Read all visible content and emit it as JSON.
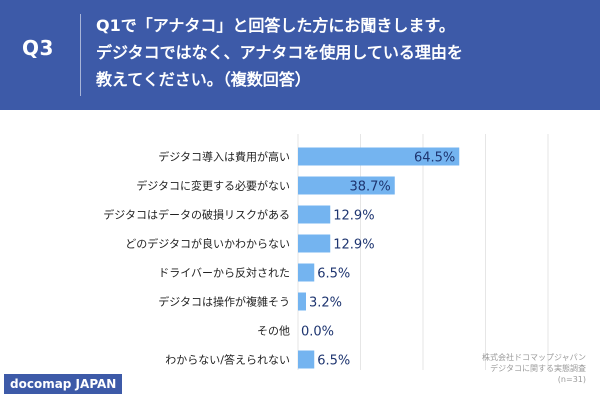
{
  "header": {
    "q_label": "Q3",
    "question_lines": [
      "Q1で「アナタコ」と回答した方にお聞きします。",
      "デジタコではなく、アナタコを使用している理由を",
      "教えてください。（複数回答）"
    ]
  },
  "brand": "docomap JAPAN",
  "source_lines": [
    "株式会社ドコマップジャパン",
    "デジタコに関する実態調査",
    "(n=31)"
  ],
  "colors": {
    "header_bg": "#3d5aa8",
    "bar": "#74b4f0",
    "value_text": "#1e3570",
    "label_text": "#222222"
  },
  "chart_data": {
    "type": "bar",
    "orientation": "horizontal",
    "title": "",
    "xlabel": "",
    "ylabel": "",
    "xlim": [
      0,
      100
    ],
    "unit": "%",
    "grid": true,
    "categories": [
      "デジタコ導入は費用が高い",
      "デジタコに変更する必要がない",
      "デジタコはデータの破損リスクがある",
      "どのデジタコが良いかわからない",
      "ドライバーから反対された",
      "デジタコは操作が複雑そう",
      "その他",
      "わからない/答えられない"
    ],
    "values": [
      64.5,
      38.7,
      12.9,
      12.9,
      6.5,
      3.2,
      0.0,
      6.5
    ],
    "value_labels": [
      "64.5%",
      "38.7%",
      "12.9%",
      "12.9%",
      "6.5%",
      "3.2%",
      "0.0%",
      "6.5%"
    ]
  }
}
